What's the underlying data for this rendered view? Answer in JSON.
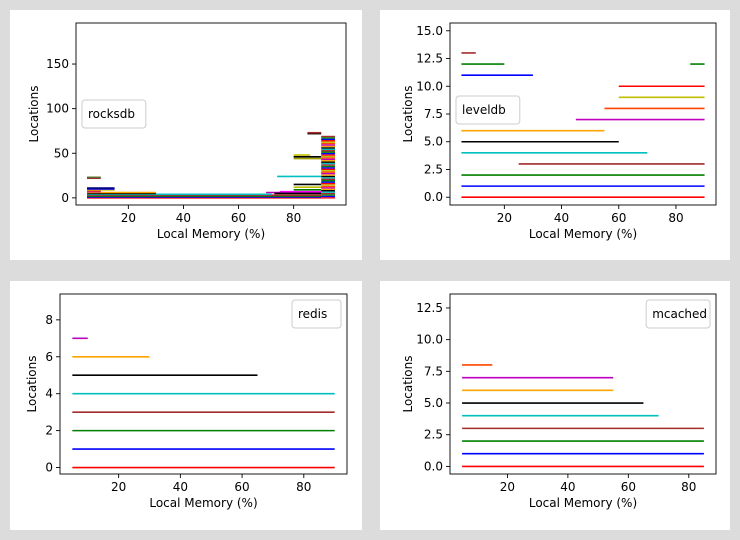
{
  "chart_data": [
    {
      "type": "line",
      "legend": "rocksdb",
      "legend_position": "upper-left",
      "xlabel": "Local Memory (%)",
      "ylabel": "Locations",
      "xlim": [
        1,
        99
      ],
      "ylim": [
        -8,
        196
      ],
      "xticks": [
        20,
        40,
        60,
        80
      ],
      "yticks": [
        0,
        50,
        100,
        150
      ],
      "xtick_labels": [
        "20",
        "40",
        "60",
        "80"
      ],
      "ytick_labels": [
        "0",
        "50",
        "100",
        "150"
      ],
      "segments": [
        {
          "y": 0,
          "x0": 5,
          "x1": 90,
          "color": "#ff0000"
        },
        {
          "y": 1,
          "x0": 5,
          "x1": 90,
          "color": "#0000ff"
        },
        {
          "y": 2,
          "x0": 5,
          "x1": 90,
          "color": "#008000"
        },
        {
          "y": 3,
          "x0": 5,
          "x1": 90,
          "color": "#a52a2a"
        },
        {
          "y": 4,
          "x0": 5,
          "x1": 72,
          "color": "#00bfbf"
        },
        {
          "y": 5,
          "x0": 5,
          "x1": 30,
          "color": "#000000"
        },
        {
          "y": 6,
          "x0": 5,
          "x1": 30,
          "color": "#ffa500"
        },
        {
          "y": 7,
          "x0": 5,
          "x1": 10,
          "color": "#bf00bf"
        },
        {
          "y": 8,
          "x0": 5,
          "x1": 10,
          "color": "#ff4500"
        },
        {
          "y": 9,
          "x0": 5,
          "x1": 15,
          "color": "#bfbf00"
        },
        {
          "y": 10,
          "x0": 5,
          "x1": 15,
          "color": "#0000ff"
        },
        {
          "y": 11,
          "x0": 5,
          "x1": 15,
          "color": "#000080"
        },
        {
          "y": 22,
          "x0": 5,
          "x1": 10,
          "color": "#a52a2a"
        },
        {
          "y": 23,
          "x0": 5,
          "x1": 10,
          "color": "#556b2f"
        },
        {
          "y": 6,
          "x0": 70,
          "x1": 90,
          "color": "#bf00bf"
        },
        {
          "y": 7,
          "x0": 75,
          "x1": 90,
          "color": "#ff00ff"
        },
        {
          "y": 5,
          "x0": 73,
          "x1": 90,
          "color": "#000000"
        },
        {
          "y": 24,
          "x0": 74,
          "x1": 90,
          "color": "#00bfbf"
        },
        {
          "y": 9,
          "x0": 80,
          "x1": 90,
          "color": "#008000"
        },
        {
          "y": 12,
          "x0": 80,
          "x1": 90,
          "color": "#bfbf00"
        },
        {
          "y": 15,
          "x0": 80,
          "x1": 90,
          "color": "#000000"
        },
        {
          "y": 44,
          "x0": 80,
          "x1": 90,
          "color": "#a0a000"
        },
        {
          "y": 46,
          "x0": 80,
          "x1": 90,
          "color": "#000000"
        },
        {
          "y": 48,
          "x0": 80,
          "x1": 86,
          "color": "#bfbf00"
        },
        {
          "y": 72,
          "x0": 85,
          "x1": 90,
          "color": "#000000"
        },
        {
          "y": 73,
          "x0": 85,
          "x1": 90,
          "color": "#a52a2a"
        }
      ],
      "dense_block": {
        "x0": 90,
        "x1": 95,
        "y_from": 0,
        "y_to": 70,
        "colors": [
          "#ff0000",
          "#0000ff",
          "#008000",
          "#a52a2a",
          "#00bfbf",
          "#000000",
          "#ffa500",
          "#bf00bf",
          "#ff4500",
          "#bfbf00"
        ]
      }
    },
    {
      "type": "line",
      "legend": "leveldb",
      "legend_position": "center-left",
      "xlabel": "Local Memory (%)",
      "ylabel": "Locations",
      "xlim": [
        1,
        94
      ],
      "ylim": [
        -0.7,
        15.7
      ],
      "xticks": [
        20,
        40,
        60,
        80
      ],
      "yticks": [
        0,
        2.5,
        5,
        7.5,
        10,
        12.5,
        15
      ],
      "xtick_labels": [
        "20",
        "40",
        "60",
        "80"
      ],
      "ytick_labels": [
        "0.0",
        "2.5",
        "5.0",
        "7.5",
        "10.0",
        "12.5",
        "15.0"
      ],
      "segments": [
        {
          "y": 0,
          "x0": 5,
          "x1": 90,
          "color": "#ff0000"
        },
        {
          "y": 1,
          "x0": 5,
          "x1": 90,
          "color": "#0000ff"
        },
        {
          "y": 2,
          "x0": 5,
          "x1": 90,
          "color": "#008000"
        },
        {
          "y": 3,
          "x0": 25,
          "x1": 90,
          "color": "#a52a2a"
        },
        {
          "y": 4,
          "x0": 5,
          "x1": 70,
          "color": "#00bfbf"
        },
        {
          "y": 5,
          "x0": 5,
          "x1": 60,
          "color": "#000000"
        },
        {
          "y": 6,
          "x0": 5,
          "x1": 55,
          "color": "#ffa500"
        },
        {
          "y": 7,
          "x0": 45,
          "x1": 90,
          "color": "#bf00bf"
        },
        {
          "y": 8,
          "x0": 55,
          "x1": 90,
          "color": "#ff4500"
        },
        {
          "y": 9,
          "x0": 60,
          "x1": 90,
          "color": "#bfbf00"
        },
        {
          "y": 10,
          "x0": 60,
          "x1": 90,
          "color": "#ff0000"
        },
        {
          "y": 11,
          "x0": 5,
          "x1": 30,
          "color": "#0000ff"
        },
        {
          "y": 12,
          "x0": 5,
          "x1": 20,
          "color": "#008000"
        },
        {
          "y": 12,
          "x0": 85,
          "x1": 90,
          "color": "#008000"
        },
        {
          "y": 13,
          "x0": 5,
          "x1": 10,
          "color": "#a52a2a"
        }
      ]
    },
    {
      "type": "line",
      "legend": "redis",
      "legend_position": "upper-right",
      "xlabel": "Local Memory (%)",
      "ylabel": "Locations",
      "xlim": [
        1,
        94
      ],
      "ylim": [
        -0.35,
        9.4
      ],
      "xticks": [
        20,
        40,
        60,
        80
      ],
      "yticks": [
        0,
        2,
        4,
        6,
        8
      ],
      "xtick_labels": [
        "20",
        "40",
        "60",
        "80"
      ],
      "ytick_labels": [
        "0",
        "2",
        "4",
        "6",
        "8"
      ],
      "segments": [
        {
          "y": 0,
          "x0": 5,
          "x1": 90,
          "color": "#ff0000"
        },
        {
          "y": 1,
          "x0": 5,
          "x1": 90,
          "color": "#0000ff"
        },
        {
          "y": 2,
          "x0": 5,
          "x1": 90,
          "color": "#008000"
        },
        {
          "y": 3,
          "x0": 5,
          "x1": 90,
          "color": "#a52a2a"
        },
        {
          "y": 4,
          "x0": 5,
          "x1": 90,
          "color": "#00bfbf"
        },
        {
          "y": 5,
          "x0": 5,
          "x1": 65,
          "color": "#000000"
        },
        {
          "y": 6,
          "x0": 5,
          "x1": 30,
          "color": "#ffa500"
        },
        {
          "y": 7,
          "x0": 5,
          "x1": 10,
          "color": "#bf00bf"
        }
      ]
    },
    {
      "type": "line",
      "legend": "mcached",
      "legend_position": "upper-right",
      "xlabel": "Local Memory (%)",
      "ylabel": "Locations",
      "xlim": [
        1,
        89
      ],
      "ylim": [
        -0.6,
        13.6
      ],
      "xticks": [
        20,
        40,
        60,
        80
      ],
      "yticks": [
        0,
        2.5,
        5,
        7.5,
        10,
        12.5
      ],
      "xtick_labels": [
        "20",
        "40",
        "60",
        "80"
      ],
      "ytick_labels": [
        "0.0",
        "2.5",
        "5.0",
        "7.5",
        "10.0",
        "12.5"
      ],
      "segments": [
        {
          "y": 0,
          "x0": 5,
          "x1": 85,
          "color": "#ff0000"
        },
        {
          "y": 1,
          "x0": 5,
          "x1": 85,
          "color": "#0000ff"
        },
        {
          "y": 2,
          "x0": 5,
          "x1": 85,
          "color": "#008000"
        },
        {
          "y": 3,
          "x0": 5,
          "x1": 85,
          "color": "#a52a2a"
        },
        {
          "y": 4,
          "x0": 5,
          "x1": 70,
          "color": "#00bfbf"
        },
        {
          "y": 5,
          "x0": 5,
          "x1": 65,
          "color": "#000000"
        },
        {
          "y": 6,
          "x0": 5,
          "x1": 55,
          "color": "#ffa500"
        },
        {
          "y": 7,
          "x0": 5,
          "x1": 55,
          "color": "#bf00bf"
        },
        {
          "y": 8,
          "x0": 5,
          "x1": 15,
          "color": "#ff4500"
        }
      ]
    }
  ]
}
